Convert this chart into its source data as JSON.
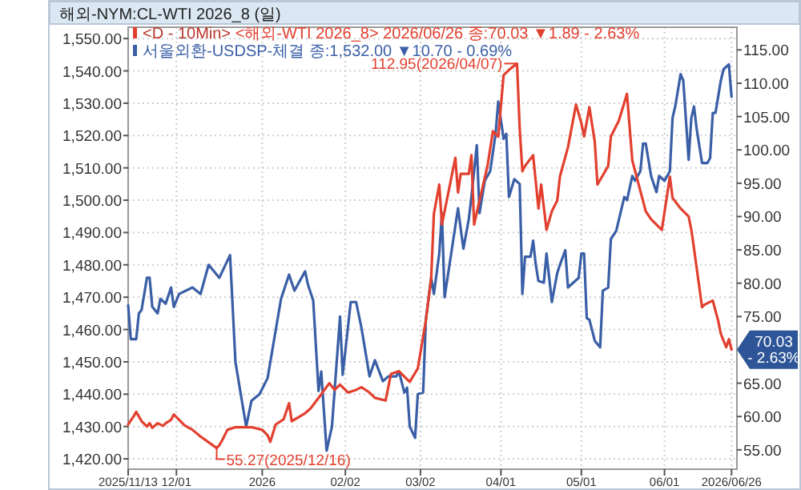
{
  "chart_data": {
    "type": "line",
    "title": "해외-NYM:CL-WTI 2026_8 (일)",
    "legend_title": "<D - 10Min>",
    "legend": "top left",
    "grid": true,
    "marker": "none",
    "xlim": [
      "2025-11-13",
      "2026-06-28"
    ],
    "xticks": [
      {
        "value": "2025-11-13",
        "label": "2025/11/13"
      },
      {
        "value": "2025-12-01",
        "label": "12/01"
      },
      {
        "value": "2026-01-02",
        "label": "2026"
      },
      {
        "value": "2026-02-02",
        "label": "02/02"
      },
      {
        "value": "2026-03-02",
        "label": "03/02"
      },
      {
        "value": "2026-04-01",
        "label": "04/01"
      },
      {
        "value": "2026-05-01",
        "label": "05/01"
      },
      {
        "value": "2026-06-01",
        "label": "06/01"
      },
      {
        "value": "2026-06-26",
        "label": "2026/06/26"
      }
    ],
    "ylim": [
      1416.8,
      1553.5
    ],
    "yticks": [
      {
        "value": 1420,
        "label": "1,420.00"
      },
      {
        "value": 1430,
        "label": "1,430.00"
      },
      {
        "value": 1440,
        "label": "1,440.00"
      },
      {
        "value": 1450,
        "label": "1,450.00"
      },
      {
        "value": 1460,
        "label": "1,460.00"
      },
      {
        "value": 1470,
        "label": "1,470.00"
      },
      {
        "value": 1480,
        "label": "1,480.00"
      },
      {
        "value": 1490,
        "label": "1,490.00"
      },
      {
        "value": 1500,
        "label": "1,500.00"
      },
      {
        "value": 1510,
        "label": "1,510.00"
      },
      {
        "value": 1520,
        "label": "1,520.00"
      },
      {
        "value": 1530,
        "label": "1,530.00"
      },
      {
        "value": 1540,
        "label": "1,540.00"
      },
      {
        "value": 1550,
        "label": "1,550.00"
      }
    ],
    "y2lim": [
      52.1,
      118.4
    ],
    "y2ticks": [
      {
        "value": 55,
        "label": "55.00"
      },
      {
        "value": 60,
        "label": "60.00"
      },
      {
        "value": 65,
        "label": "65.00"
      },
      {
        "value": 75,
        "label": "75.00"
      },
      {
        "value": 80,
        "label": "80.00"
      },
      {
        "value": 85,
        "label": "85.00"
      },
      {
        "value": 90,
        "label": "90.00"
      },
      {
        "value": 95,
        "label": "95.00"
      },
      {
        "value": 100,
        "label": "100.00"
      },
      {
        "value": 105,
        "label": "105.00"
      },
      {
        "value": 110,
        "label": "110.00"
      },
      {
        "value": 115,
        "label": "115.00"
      }
    ],
    "series": [
      {
        "name": "<해외-WTI 2026_8> 2026/06/26 종:70.03 ▼1.89 - 2.63%",
        "color": "#e2402f",
        "axis": "y2",
        "x": [
          "2025-11-13",
          "2025-11-15",
          "2025-11-16",
          "2025-11-18",
          "2025-11-20",
          "2025-11-21",
          "2025-11-22",
          "2025-11-24",
          "2025-11-26",
          "2025-11-27",
          "2025-11-29",
          "2025-11-30",
          "2025-12-04",
          "2025-12-07",
          "2025-12-10",
          "2025-12-16",
          "2025-12-17",
          "2025-12-18",
          "2025-12-20",
          "2025-12-23",
          "2025-12-29",
          "2026-01-02",
          "2026-01-04",
          "2026-01-05",
          "2026-01-07",
          "2026-01-10",
          "2026-01-12",
          "2026-01-13",
          "2026-01-18",
          "2026-01-20",
          "2026-01-23",
          "2026-01-27",
          "2026-01-29",
          "2026-01-31",
          "2026-02-03",
          "2026-02-06",
          "2026-02-08",
          "2026-02-11",
          "2026-02-13",
          "2026-02-17",
          "2026-02-19",
          "2026-02-22",
          "2026-02-26",
          "2026-03-01",
          "2026-03-04",
          "2026-03-06",
          "2026-03-07",
          "2026-03-09",
          "2026-03-10",
          "2026-03-15",
          "2026-03-16",
          "2026-03-17",
          "2026-03-20",
          "2026-03-21",
          "2026-03-22",
          "2026-03-24",
          "2026-03-27",
          "2026-03-29",
          "2026-03-31",
          "2026-04-02",
          "2026-04-04",
          "2026-04-07",
          "2026-04-08",
          "2026-04-09",
          "2026-04-10",
          "2026-04-13",
          "2026-04-15",
          "2026-04-16",
          "2026-04-18",
          "2026-04-20",
          "2026-04-22",
          "2026-04-23",
          "2026-04-26",
          "2026-04-29",
          "2026-05-01",
          "2026-05-02",
          "2026-05-04",
          "2026-05-06",
          "2026-05-07",
          "2026-05-11",
          "2026-05-12",
          "2026-05-15",
          "2026-05-18",
          "2026-05-20",
          "2026-05-25",
          "2026-05-27",
          "2026-05-31",
          "2026-06-03",
          "2026-06-04",
          "2026-06-07",
          "2026-06-10",
          "2026-06-11",
          "2026-06-12",
          "2026-06-15",
          "2026-06-16",
          "2026-06-19",
          "2026-06-21",
          "2026-06-22",
          "2026-06-24",
          "2026-06-25",
          "2026-06-26"
        ],
        "values": [
          58.8,
          60,
          60.7,
          59.3,
          58.5,
          59,
          58.3,
          59,
          58.6,
          59,
          59.5,
          60.3,
          58.7,
          58,
          57,
          55.27,
          55.7,
          56.4,
          58,
          58.4,
          58.4,
          58,
          57.2,
          56.2,
          58.8,
          59.6,
          62,
          59.3,
          60.5,
          61.2,
          62.8,
          65,
          64,
          64.8,
          63.6,
          64,
          64.4,
          63.6,
          62.8,
          62.4,
          66.4,
          66.8,
          65.2,
          67.2,
          74.4,
          80.8,
          90.4,
          94.8,
          88.8,
          98.8,
          93.6,
          96.4,
          96.4,
          99.2,
          88.8,
          92.4,
          97.6,
          102.8,
          102,
          111.2,
          112,
          112.95,
          103.2,
          96.8,
          97.6,
          99.2,
          91.2,
          94.8,
          88,
          90.8,
          92.4,
          96,
          100.4,
          106.8,
          104,
          102,
          106.4,
          101.2,
          94.8,
          97.6,
          102,
          104.4,
          108.4,
          98.4,
          90.8,
          89.6,
          88,
          96,
          92.8,
          91.2,
          90,
          88,
          85.2,
          76.4,
          76.8,
          77.4,
          74.4,
          72.4,
          70.4,
          71.6,
          70.03
        ]
      },
      {
        "name": "서울외환-USDSP-체결 종:1,532.00 ▼10.70 - 0.69%",
        "color": "#3a5fa6",
        "x": [
          "2025-11-13",
          "2025-11-14",
          "2025-11-16",
          "2025-11-17",
          "2025-11-18",
          "2025-11-20",
          "2025-11-21",
          "2025-11-22",
          "2025-11-24",
          "2025-11-25",
          "2025-11-27",
          "2025-11-29",
          "2025-11-30",
          "2025-12-02",
          "2025-12-07",
          "2025-12-10",
          "2025-12-13",
          "2025-12-17",
          "2025-12-21",
          "2025-12-23",
          "2025-12-27",
          "2025-12-29",
          "2026-01-01",
          "2026-01-04",
          "2026-01-09",
          "2026-01-12",
          "2026-01-14",
          "2026-01-18",
          "2026-01-19",
          "2026-01-21",
          "2026-01-23",
          "2026-01-24",
          "2026-01-26",
          "2026-01-28",
          "2026-01-31",
          "2026-02-01",
          "2026-02-04",
          "2026-02-06",
          "2026-02-08",
          "2026-02-11",
          "2026-02-13",
          "2026-02-16",
          "2026-02-18",
          "2026-02-21",
          "2026-02-22",
          "2026-02-24",
          "2026-02-25",
          "2026-02-26",
          "2026-02-28",
          "2026-03-01",
          "2026-03-03",
          "2026-03-04",
          "2026-03-06",
          "2026-03-07",
          "2026-03-09",
          "2026-03-10",
          "2026-03-11",
          "2026-03-16",
          "2026-03-18",
          "2026-03-20",
          "2026-03-21",
          "2026-03-23",
          "2026-03-24",
          "2026-03-26",
          "2026-03-28",
          "2026-03-30",
          "2026-03-31",
          "2026-04-02",
          "2026-04-03",
          "2026-04-04",
          "2026-04-06",
          "2026-04-08",
          "2026-04-09",
          "2026-04-10",
          "2026-04-12",
          "2026-04-13",
          "2026-04-14",
          "2026-04-15",
          "2026-04-17",
          "2026-04-18",
          "2026-04-20",
          "2026-04-22",
          "2026-04-23",
          "2026-04-25",
          "2026-04-26",
          "2026-04-28",
          "2026-04-30",
          "2026-05-01",
          "2026-05-02",
          "2026-05-03",
          "2026-05-04",
          "2026-05-06",
          "2026-05-08",
          "2026-05-09",
          "2026-05-11",
          "2026-05-12",
          "2026-05-14",
          "2026-05-17",
          "2026-05-18",
          "2026-05-20",
          "2026-05-21",
          "2026-05-23",
          "2026-05-24",
          "2026-05-25",
          "2026-05-27",
          "2026-05-29",
          "2026-05-30",
          "2026-06-01",
          "2026-06-03",
          "2026-06-04",
          "2026-06-05",
          "2026-06-07",
          "2026-06-08",
          "2026-06-10",
          "2026-06-11",
          "2026-06-12",
          "2026-06-13",
          "2026-06-15",
          "2026-06-17",
          "2026-06-18",
          "2026-06-19",
          "2026-06-20",
          "2026-06-22",
          "2026-06-23",
          "2026-06-25",
          "2026-06-26"
        ],
        "values": [
          1467.5,
          1457,
          1457,
          1465,
          1466,
          1476,
          1476,
          1467,
          1465,
          1469.5,
          1468,
          1473,
          1467,
          1471,
          1473,
          1471,
          1480,
          1476,
          1483,
          1450,
          1430,
          1438,
          1440,
          1445,
          1469.5,
          1477,
          1472,
          1478,
          1474,
          1469,
          1441,
          1447,
          1422.5,
          1430,
          1464,
          1446,
          1468.5,
          1468.5,
          1460.5,
          1445.5,
          1450.5,
          1444,
          1445.5,
          1445.5,
          1447,
          1440.5,
          1442,
          1430,
          1426.5,
          1440,
          1440.5,
          1463,
          1476,
          1471,
          1483.5,
          1496,
          1470,
          1497.5,
          1485,
          1494,
          1501,
          1517,
          1496,
          1506,
          1509,
          1520.5,
          1530.5,
          1519,
          1520.5,
          1501,
          1506.5,
          1505,
          1471,
          1482.5,
          1482.5,
          1487.5,
          1480,
          1475,
          1474.5,
          1483.5,
          1468.5,
          1477.5,
          1480,
          1484.5,
          1473,
          1474.5,
          1476,
          1483.5,
          1483.5,
          1463.5,
          1463,
          1456.5,
          1454.5,
          1472,
          1473,
          1488,
          1490.5,
          1501,
          1500,
          1507.5,
          1506,
          1509,
          1517.5,
          1517.5,
          1507.5,
          1502.5,
          1507.5,
          1506,
          1509,
          1525.5,
          1529,
          1539,
          1537,
          1512.5,
          1525.5,
          1529,
          1522,
          1511.5,
          1511.5,
          1513,
          1527,
          1527,
          1537,
          1540.5,
          1542,
          1532
        ]
      }
    ],
    "annotations": [
      "112.95(2026/04/07)",
      "55.27(2025/12/16)",
      "70.03 - 2.63%"
    ]
  }
}
